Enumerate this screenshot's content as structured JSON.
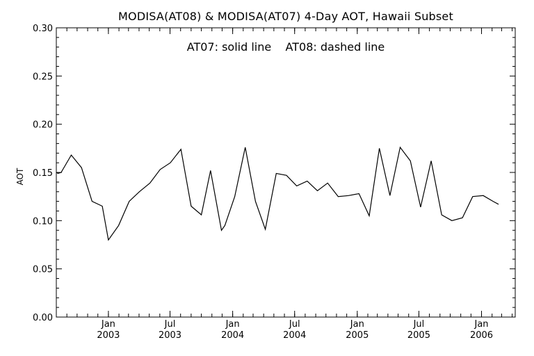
{
  "chart_data": {
    "type": "line",
    "title": "MODISA(AT08) & MODISA(AT07) 4-Day AOT, Hawaii Subset",
    "annotation": "AT07: solid line    AT08: dashed line",
    "xlabel": "",
    "ylabel": "AOT",
    "ylim": [
      0.0,
      0.3
    ],
    "yticks": [
      "0.00",
      "0.05",
      "0.10",
      "0.15",
      "0.20",
      "0.25",
      "0.30"
    ],
    "xlim": [
      "2002-08-01",
      "2006-04-10"
    ],
    "xticks": [
      {
        "date": "2003-01-01",
        "line1": "Jan",
        "line2": "2003"
      },
      {
        "date": "2003-07-01",
        "line1": "Jul",
        "line2": "2003"
      },
      {
        "date": "2004-01-01",
        "line1": "Jan",
        "line2": "2004"
      },
      {
        "date": "2004-07-01",
        "line1": "Jul",
        "line2": "2004"
      },
      {
        "date": "2005-01-01",
        "line1": "Jan",
        "line2": "2005"
      },
      {
        "date": "2005-07-01",
        "line1": "Jul",
        "line2": "2005"
      },
      {
        "date": "2006-01-01",
        "line1": "Jan",
        "line2": "2006"
      }
    ],
    "grid": false,
    "series": [
      {
        "name": "AT07",
        "style": "solid",
        "color": "#000000",
        "points": [
          [
            "2002-08-01",
            0.15
          ],
          [
            "2002-08-06",
            0.149
          ],
          [
            "2002-08-15",
            0.15
          ],
          [
            "2002-09-14",
            0.168
          ],
          [
            "2002-10-14",
            0.155
          ],
          [
            "2002-11-14",
            0.12
          ],
          [
            "2002-12-14",
            0.115
          ],
          [
            "2003-01-01",
            0.08
          ],
          [
            "2003-01-31",
            0.095
          ],
          [
            "2003-03-03",
            0.12
          ],
          [
            "2003-04-02",
            0.13
          ],
          [
            "2003-05-03",
            0.139
          ],
          [
            "2003-06-02",
            0.153
          ],
          [
            "2003-07-02",
            0.16
          ],
          [
            "2003-08-02",
            0.174
          ],
          [
            "2003-09-01",
            0.115
          ],
          [
            "2003-10-01",
            0.106
          ],
          [
            "2003-10-28",
            0.152
          ],
          [
            "2003-11-29",
            0.09
          ],
          [
            "2003-12-09",
            0.095
          ],
          [
            "2004-01-07",
            0.125
          ],
          [
            "2004-02-07",
            0.176
          ],
          [
            "2004-03-08",
            0.12
          ],
          [
            "2004-04-06",
            0.091
          ],
          [
            "2004-05-08",
            0.149
          ],
          [
            "2004-06-07",
            0.147
          ],
          [
            "2004-07-07",
            0.136
          ],
          [
            "2004-08-07",
            0.141
          ],
          [
            "2004-09-06",
            0.131
          ],
          [
            "2004-10-06",
            0.139
          ],
          [
            "2004-11-06",
            0.125
          ],
          [
            "2004-12-06",
            0.126
          ],
          [
            "2005-01-06",
            0.128
          ],
          [
            "2005-02-05",
            0.105
          ],
          [
            "2005-03-07",
            0.175
          ],
          [
            "2005-04-07",
            0.126
          ],
          [
            "2005-05-07",
            0.176
          ],
          [
            "2005-06-06",
            0.162
          ],
          [
            "2005-07-06",
            0.114
          ],
          [
            "2005-08-06",
            0.162
          ],
          [
            "2005-09-06",
            0.106
          ],
          [
            "2005-10-06",
            0.1
          ],
          [
            "2005-11-06",
            0.103
          ],
          [
            "2005-12-06",
            0.125
          ],
          [
            "2006-01-06",
            0.126
          ],
          [
            "2006-02-04",
            0.12
          ],
          [
            "2006-02-20",
            0.117
          ]
        ]
      }
    ]
  }
}
